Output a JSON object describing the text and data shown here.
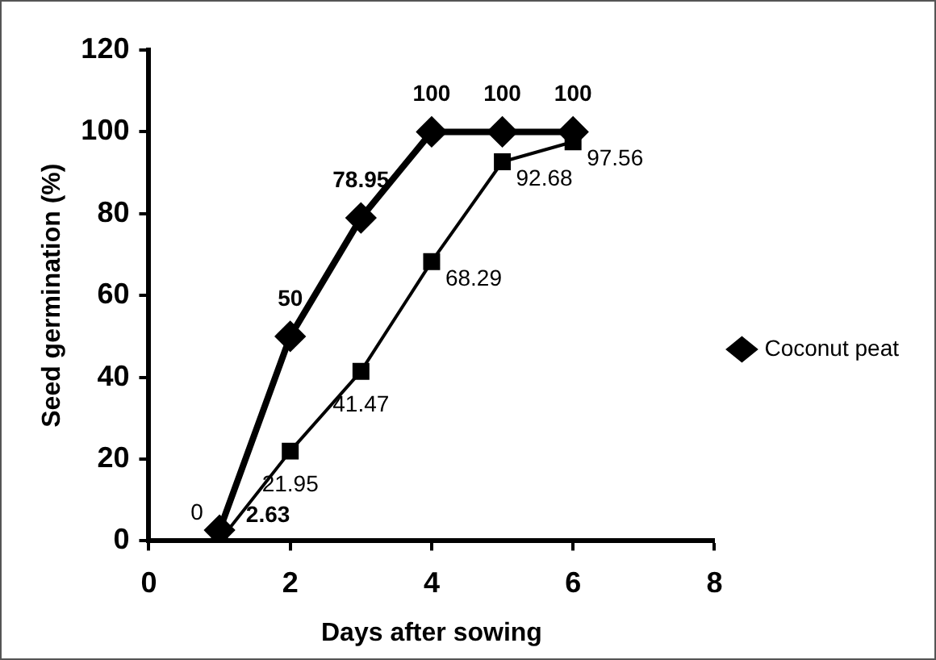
{
  "chart_data": {
    "type": "line",
    "xlabel": "Days after sowing",
    "ylabel": "Seed germination (%)",
    "x": [
      1,
      2,
      3,
      4,
      5,
      6
    ],
    "series": [
      {
        "name": "Coconut peat",
        "color": "#000000",
        "marker": "diamond",
        "values": [
          2.63,
          50,
          78.95,
          100,
          100,
          100
        ],
        "value_labels": [
          "2.63",
          "50",
          "78.95",
          "100",
          "100",
          "100"
        ]
      },
      {
        "color": "#000000",
        "marker": "square",
        "values": [
          0,
          21.95,
          41.47,
          68.29,
          92.68,
          97.56
        ],
        "value_labels": [
          "0",
          "21.95",
          "41.47",
          "68.29",
          "92.68",
          "97.56"
        ]
      }
    ],
    "xlim": [
      0,
      8
    ],
    "xticks": [
      0,
      2,
      4,
      6,
      8
    ],
    "ylim": [
      0,
      120
    ],
    "yticks": [
      0,
      20,
      40,
      60,
      80,
      100,
      120
    ],
    "grid": false,
    "legend": "right",
    "line_style": "solid"
  }
}
